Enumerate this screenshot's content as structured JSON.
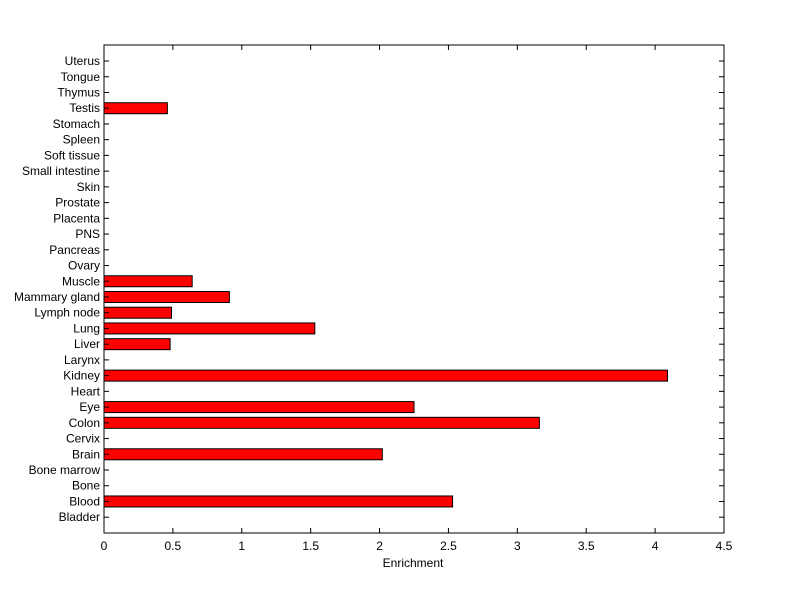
{
  "chart_data": {
    "type": "bar",
    "orientation": "horizontal",
    "xlabel": "Enrichment",
    "ylabel": "",
    "title": "",
    "xlim": [
      0,
      4.5
    ],
    "xticks": [
      "0",
      "0.5",
      "1",
      "1.5",
      "2",
      "2.5",
      "3",
      "3.5",
      "4",
      "4.5"
    ],
    "categories": [
      "Bladder",
      "Blood",
      "Bone",
      "Bone marrow",
      "Brain",
      "Cervix",
      "Colon",
      "Eye",
      "Heart",
      "Kidney",
      "Larynx",
      "Liver",
      "Lung",
      "Lymph node",
      "Mammary gland",
      "Muscle",
      "Ovary",
      "Pancreas",
      "PNS",
      "Placenta",
      "Prostate",
      "Skin",
      "Small intestine",
      "Soft tissue",
      "Spleen",
      "Stomach",
      "Testis",
      "Thymus",
      "Tongue",
      "Uterus"
    ],
    "values": [
      0,
      2.53,
      0,
      0,
      2.02,
      0,
      3.16,
      2.25,
      0,
      4.09,
      0,
      0.48,
      1.53,
      0.49,
      0.91,
      0.64,
      0,
      0,
      0,
      0,
      0,
      0,
      0,
      0,
      0,
      0,
      0.46,
      0,
      0,
      0
    ],
    "grid": false,
    "legend": "none",
    "bar_color": "#ff0000",
    "edge_color": "#000000"
  }
}
